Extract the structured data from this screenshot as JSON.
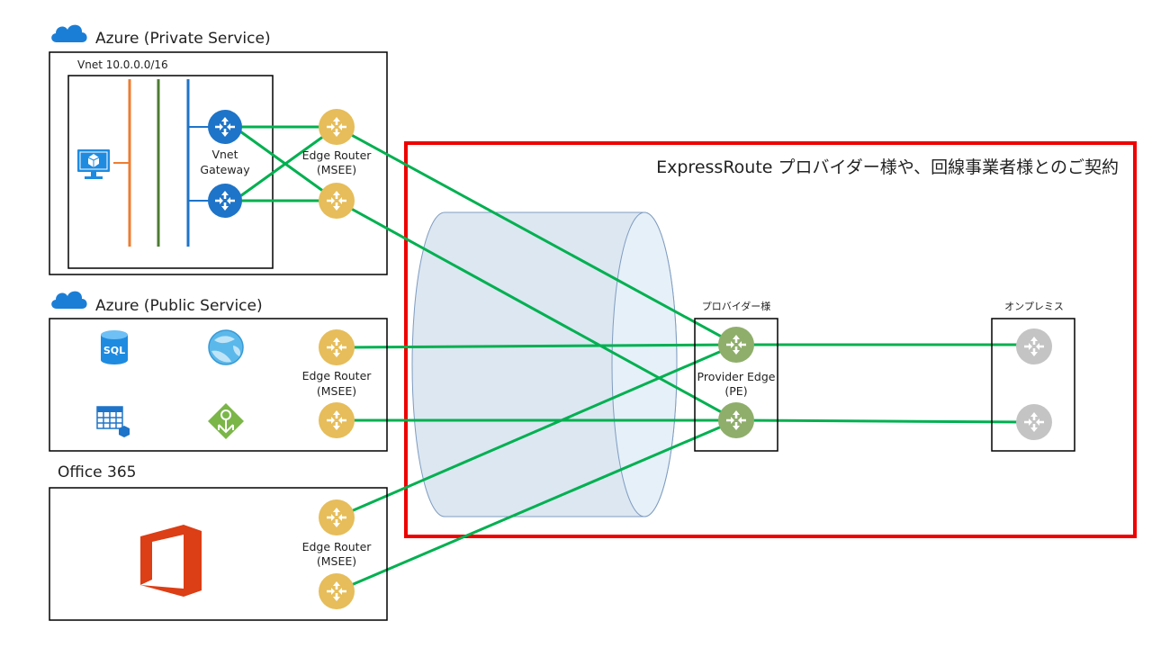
{
  "azure_private": {
    "title": "Azure (Private Service)",
    "vnet_label": "Vnet 10.0.0.0/16",
    "gateway_label_1": "Vnet",
    "gateway_label_2": "Gateway",
    "edge_label_1": "Edge Router",
    "edge_label_2": "(MSEE)"
  },
  "azure_public": {
    "title": "Azure (Public Service)",
    "sql_icon_text": "SQL",
    "edge_label_1": "Edge Router",
    "edge_label_2": "(MSEE)"
  },
  "office365": {
    "title": "Office 365",
    "edge_label_1": "Edge Router",
    "edge_label_2": "(MSEE)"
  },
  "contract": {
    "title": "ExpressRoute プロバイダー様や、回線事業者様とのご契約"
  },
  "provider": {
    "title": "プロバイダー様",
    "pe_label_1": "Provider Edge",
    "pe_label_2": "(PE)"
  },
  "onprem": {
    "title": "オンプレミス"
  },
  "colors": {
    "link": "#00b050",
    "contract_border": "#ee0000",
    "msee_router": "#e6bd5a",
    "gateway_router": "#1e74c8",
    "pe_router": "#8fae6b",
    "onprem_router": "#c4c4c4",
    "cloud": "#1b7ed6",
    "office": "#dc3e15"
  },
  "icons": [
    "cloud-icon",
    "vm-icon",
    "sql-database-icon",
    "web-app-icon",
    "storage-table-icon",
    "api-app-icon",
    "office-logo-icon",
    "router-icon"
  ]
}
